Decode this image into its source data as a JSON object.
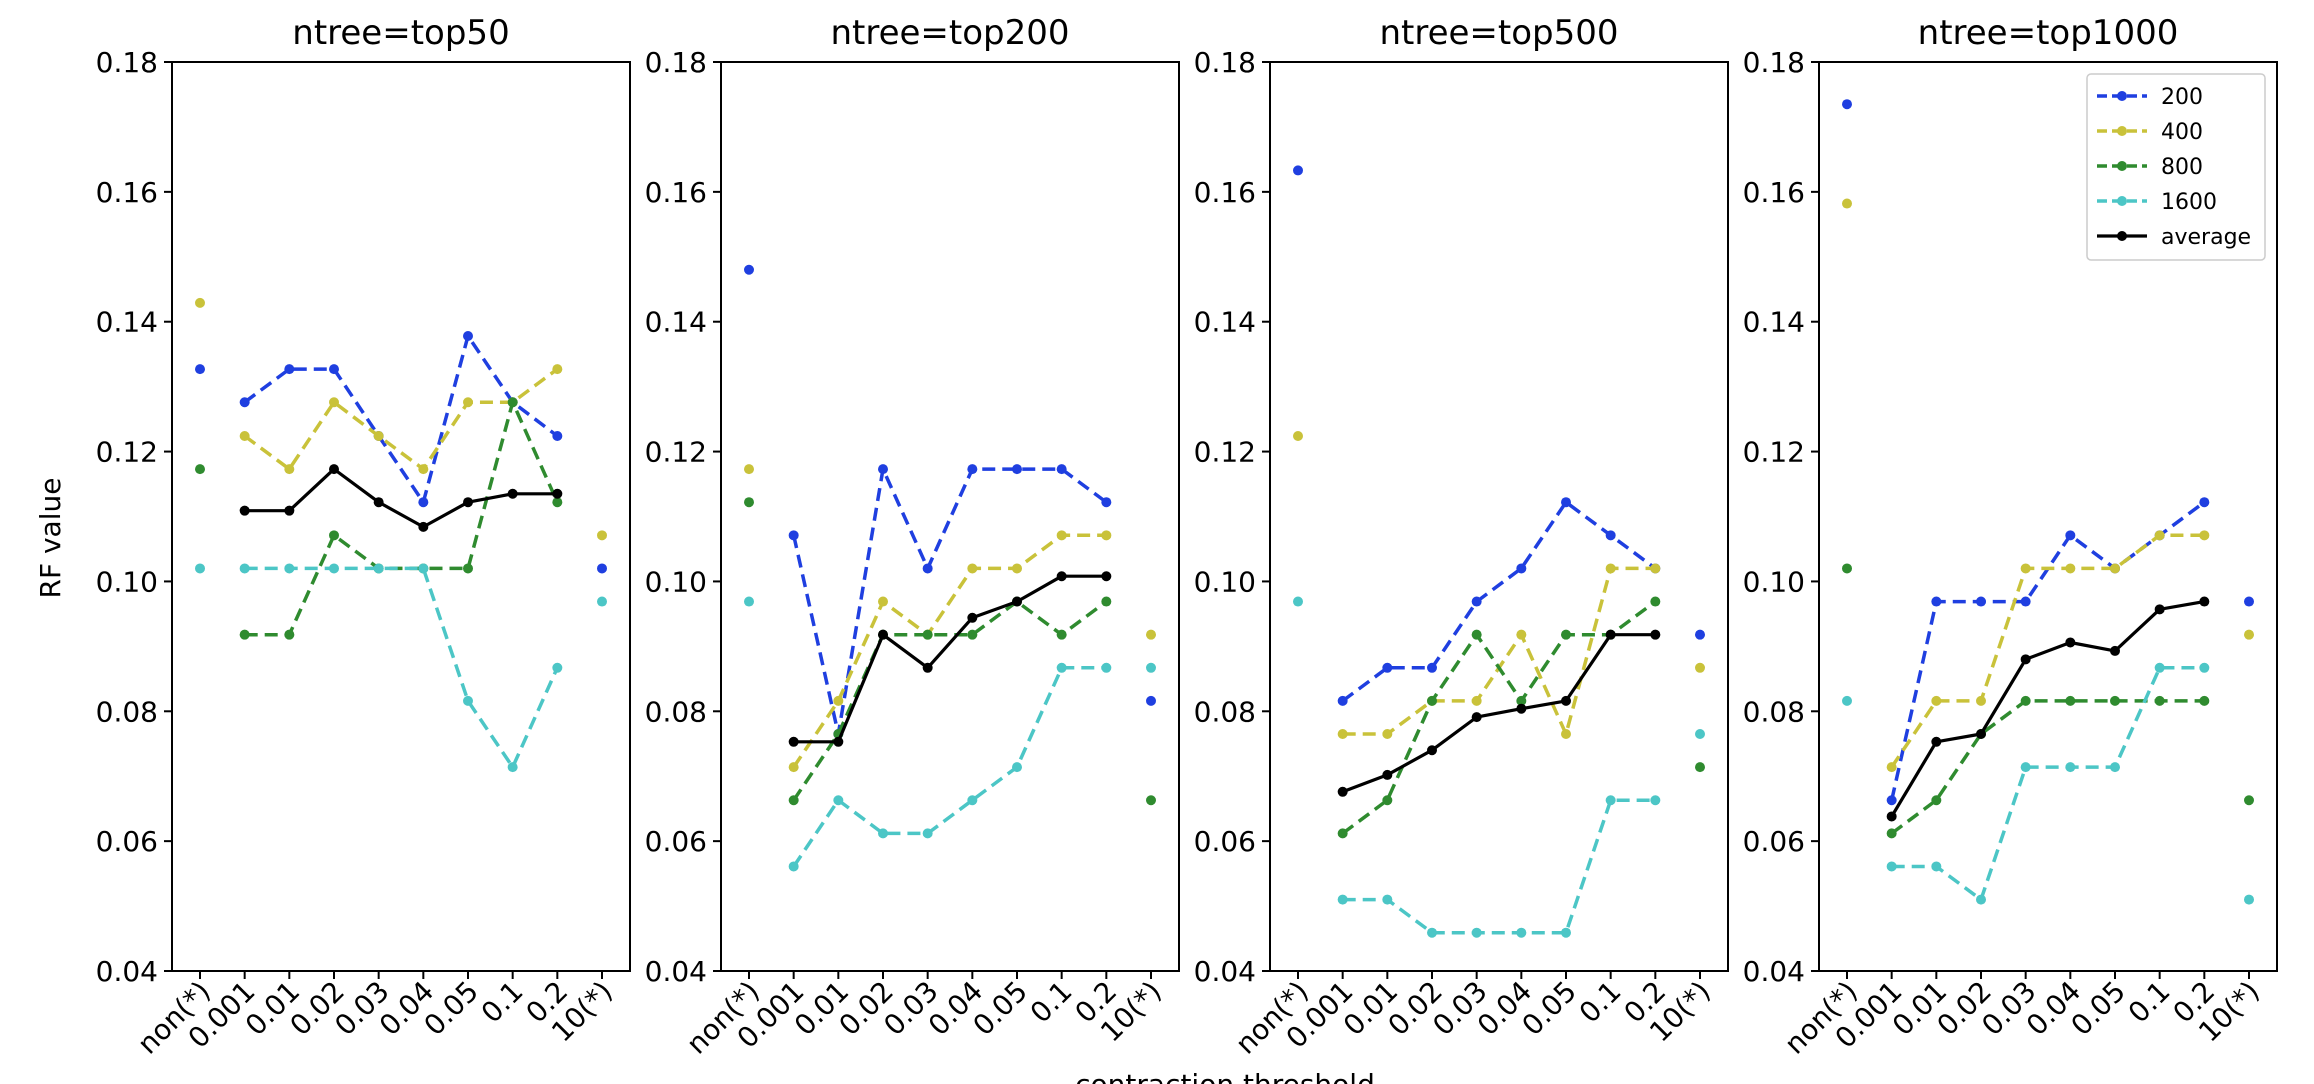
{
  "figure": {
    "ylabel": "RF value",
    "xlabel": "contraction threshold"
  },
  "chart_data": {
    "type": "line",
    "categories": [
      "non(*)",
      "0.001",
      "0.01",
      "0.02",
      "0.03",
      "0.04",
      "0.05",
      "0.1",
      "0.2",
      "10(*)"
    ],
    "yticks": [
      "0.04",
      "0.06",
      "0.08",
      "0.10",
      "0.12",
      "0.14",
      "0.16",
      "0.18"
    ],
    "ylim": [
      0.04,
      0.18
    ],
    "grid": false,
    "legend_location": "top-right of last panel",
    "series_styles": [
      {
        "key": "s200",
        "name": "200",
        "color": "#1f3fe0",
        "dashed": true
      },
      {
        "key": "s400",
        "name": "400",
        "color": "#c9c23a",
        "dashed": true
      },
      {
        "key": "s800",
        "name": "800",
        "color": "#2f8b2f",
        "dashed": true
      },
      {
        "key": "s1600",
        "name": "1600",
        "color": "#4cc6c6",
        "dashed": true
      },
      {
        "key": "avg",
        "name": "average",
        "color": "#000000",
        "dashed": false
      }
    ],
    "panels": [
      {
        "title": "ntree=top50",
        "series": {
          "s200": [
            0.1327,
            0.1276,
            0.1327,
            0.1327,
            0.1224,
            0.1122,
            0.1378,
            0.1276,
            0.1224,
            0.102
          ],
          "s400": [
            0.1429,
            0.1224,
            0.1173,
            0.1276,
            0.1224,
            0.1173,
            0.1276,
            0.1276,
            0.1327,
            0.1071
          ],
          "s800": [
            0.1173,
            0.0918,
            0.0918,
            0.1071,
            0.102,
            0.102,
            0.102,
            0.1276,
            0.1122,
            null
          ],
          "s1600": [
            0.102,
            0.102,
            0.102,
            0.102,
            0.102,
            0.102,
            0.0816,
            0.0714,
            0.0867,
            0.0969
          ],
          "avg": [
            null,
            0.1109,
            0.1109,
            0.1173,
            0.1122,
            0.1084,
            0.1122,
            0.1135,
            0.1135,
            null
          ]
        }
      },
      {
        "title": "ntree=top200",
        "series": {
          "s200": [
            0.148,
            0.1071,
            0.0765,
            0.1173,
            0.102,
            0.1173,
            0.1173,
            0.1173,
            0.1122,
            0.0816
          ],
          "s400": [
            0.1173,
            0.0714,
            0.0816,
            0.0969,
            0.0918,
            0.102,
            0.102,
            0.1071,
            0.1071,
            0.0918
          ],
          "s800": [
            0.1122,
            0.0663,
            0.0765,
            0.0918,
            0.0918,
            0.0918,
            0.0969,
            0.0918,
            0.0969,
            0.0663
          ],
          "s1600": [
            0.0969,
            0.0561,
            0.0663,
            0.0612,
            0.0612,
            0.0663,
            0.0714,
            0.0867,
            0.0867,
            0.0867
          ],
          "avg": [
            null,
            0.0753,
            0.0753,
            0.0918,
            0.0867,
            0.0944,
            0.0969,
            0.1008,
            0.1008,
            null
          ]
        }
      },
      {
        "title": "ntree=top500",
        "series": {
          "s200": [
            0.1633,
            0.0816,
            0.0867,
            0.0867,
            0.0969,
            0.102,
            0.1122,
            0.1071,
            0.102,
            0.0918
          ],
          "s400": [
            0.1224,
            0.0765,
            0.0765,
            0.0816,
            0.0816,
            0.0918,
            0.0765,
            0.102,
            0.102,
            0.0867
          ],
          "s800": [
            null,
            0.0612,
            0.0663,
            0.0816,
            0.0918,
            0.0816,
            0.0918,
            0.0918,
            0.0969,
            0.0714
          ],
          "s1600": [
            0.0969,
            0.051,
            0.051,
            0.0459,
            0.0459,
            0.0459,
            0.0459,
            0.0663,
            0.0663,
            0.0765
          ],
          "avg": [
            null,
            0.0676,
            0.0702,
            0.074,
            0.0791,
            0.0804,
            0.0816,
            0.0918,
            0.0918,
            null
          ]
        }
      },
      {
        "title": "ntree=top1000",
        "series": {
          "s200": [
            0.1735,
            0.0663,
            0.0969,
            0.0969,
            0.0969,
            0.1071,
            0.102,
            0.1071,
            0.1122,
            0.0969
          ],
          "s400": [
            0.1582,
            0.0714,
            0.0816,
            0.0816,
            0.102,
            0.102,
            0.102,
            0.1071,
            0.1071,
            0.0918
          ],
          "s800": [
            0.102,
            0.0612,
            0.0663,
            0.0765,
            0.0816,
            0.0816,
            0.0816,
            0.0816,
            0.0816,
            0.0663
          ],
          "s1600": [
            0.0816,
            0.0561,
            0.0561,
            0.051,
            0.0714,
            0.0714,
            0.0714,
            0.0867,
            0.0867,
            0.051
          ],
          "avg": [
            null,
            0.0638,
            0.0753,
            0.0765,
            0.088,
            0.0906,
            0.0893,
            0.0957,
            0.0969,
            null
          ]
        }
      }
    ]
  }
}
